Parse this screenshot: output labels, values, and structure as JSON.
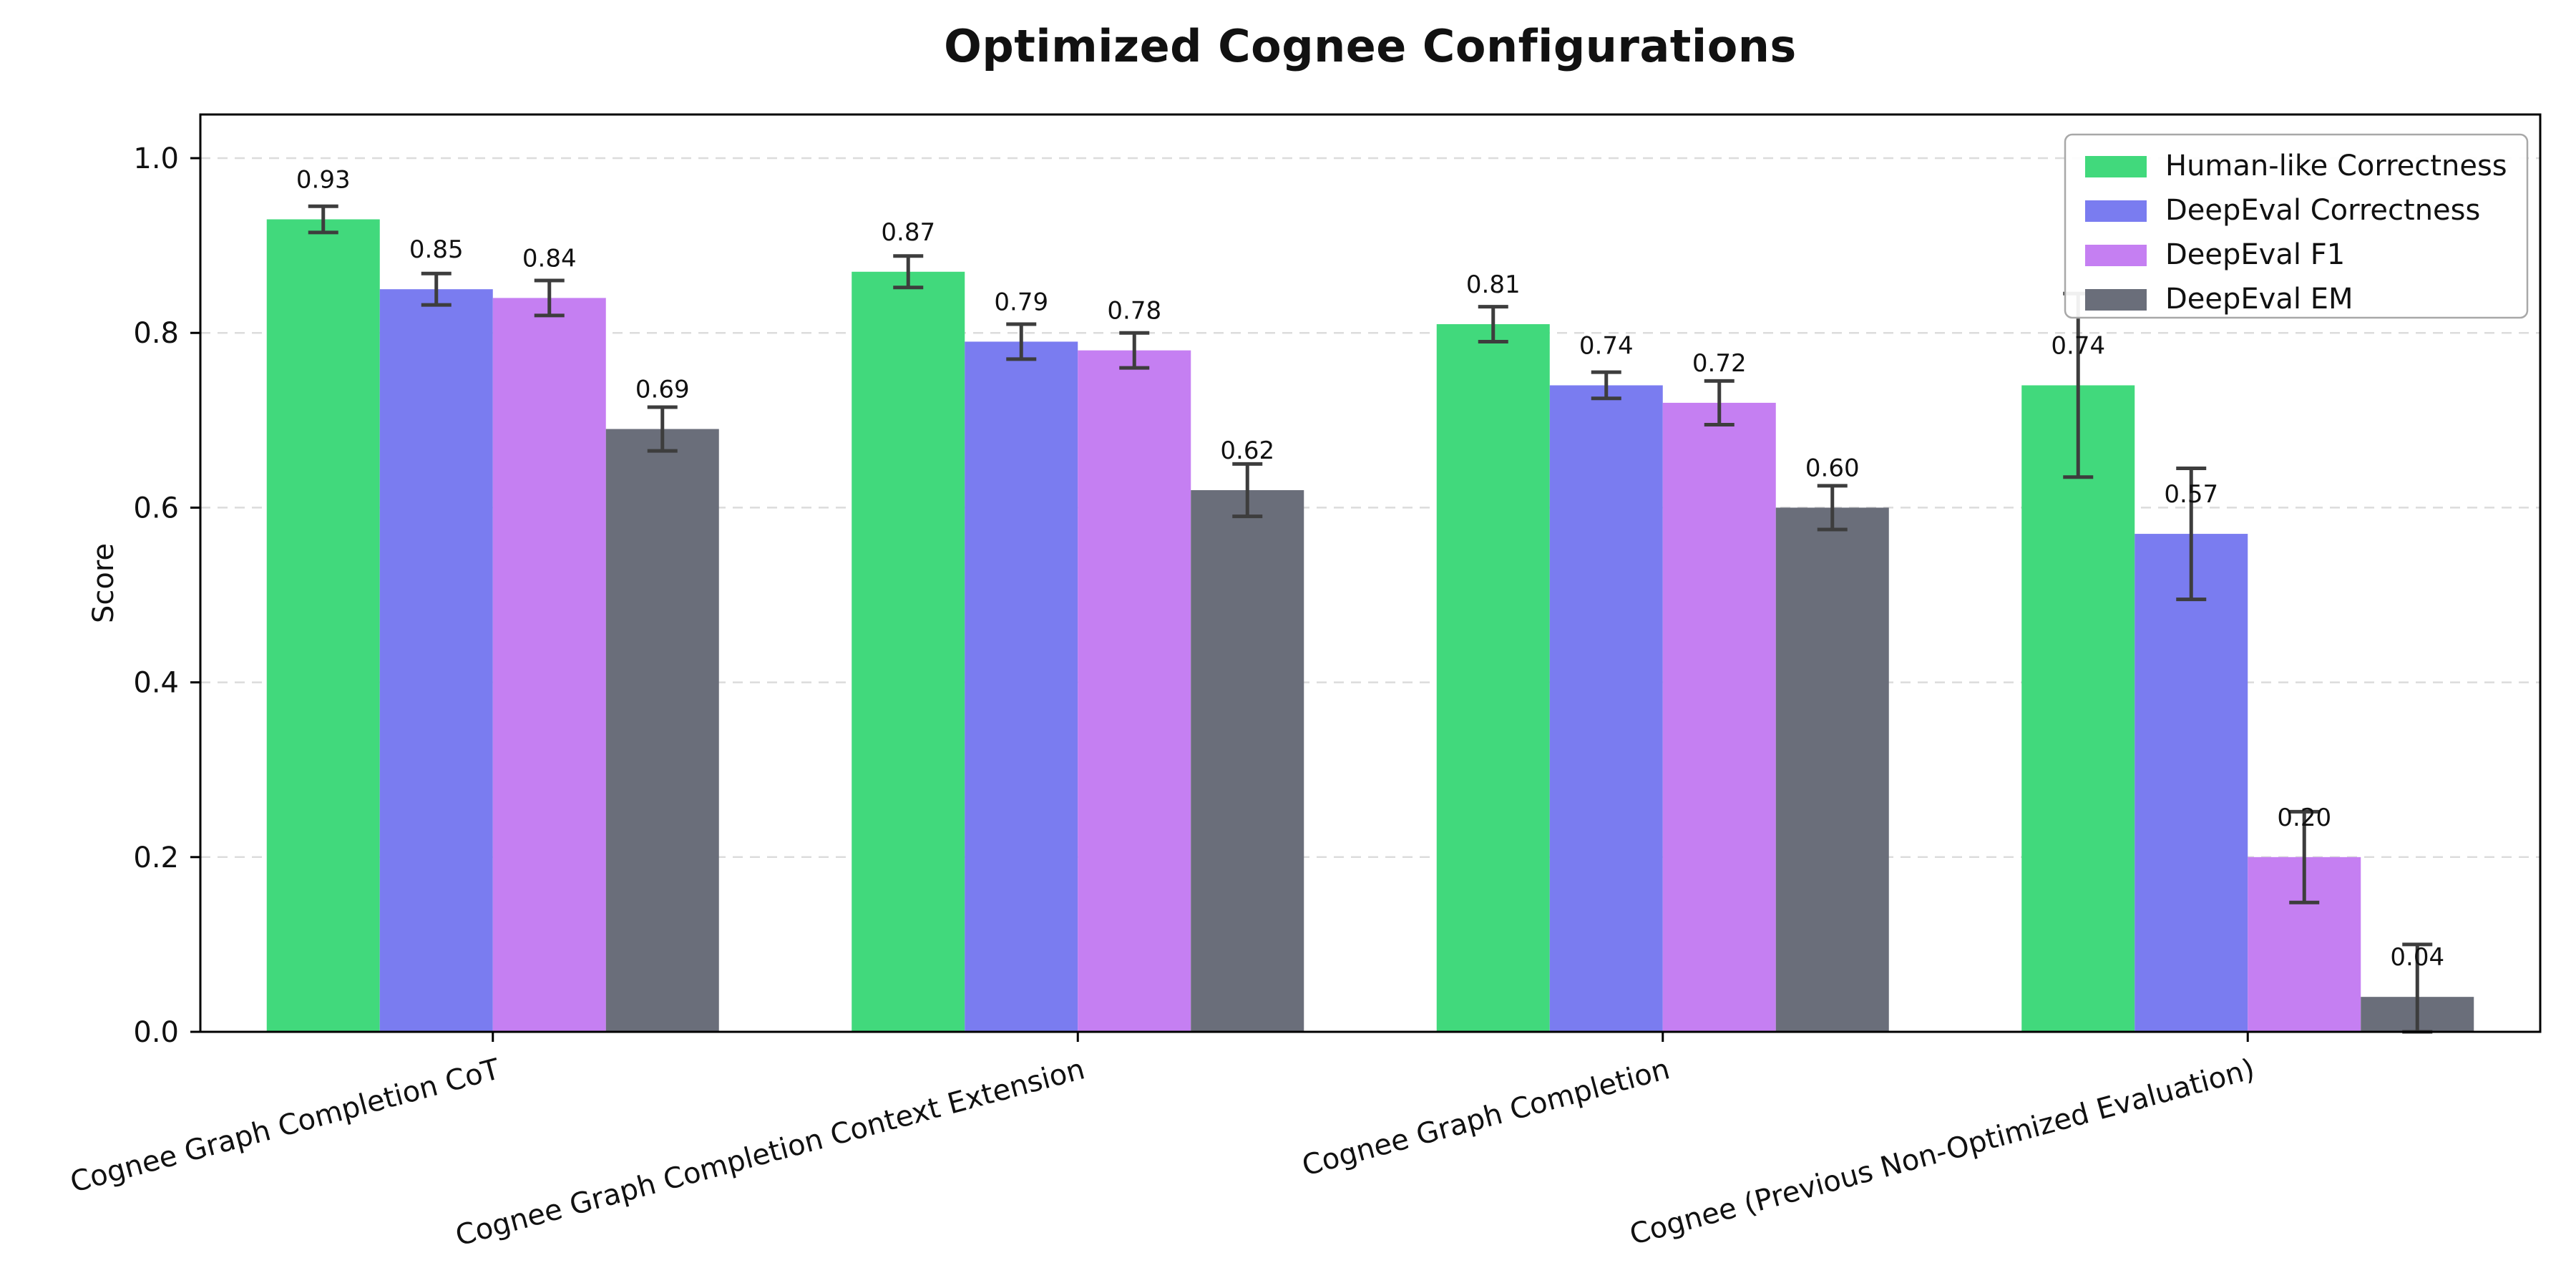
{
  "page": {
    "background": "#ffffff"
  },
  "chart_data": {
    "type": "bar",
    "title": "Optimized Cognee Configurations",
    "xlabel": "",
    "ylabel": "Score",
    "ylim": [
      0,
      1.05
    ],
    "yticks": [
      0.0,
      0.2,
      0.4,
      0.6,
      0.8,
      1.0
    ],
    "grid": {
      "axis": "y",
      "style": "dashed",
      "color": "#dcdcdc"
    },
    "legend_position": "upper-right",
    "error_bar_color": "#3d3d3d",
    "axis_color": "#000000",
    "categories": [
      "Cognee Graph Completion CoT",
      "Cognee Graph Completion Context Extension",
      "Cognee Graph Completion",
      "Cognee (Previous Non-Optimized Evaluation)"
    ],
    "series": [
      {
        "name": "Human-like Correctness",
        "color": "#41d97c",
        "values": [
          0.93,
          0.87,
          0.81,
          0.74
        ],
        "errors": [
          0.015,
          0.018,
          0.02,
          0.105
        ]
      },
      {
        "name": "DeepEval Correctness",
        "color": "#7a7cf0",
        "values": [
          0.85,
          0.79,
          0.74,
          0.57
        ],
        "errors": [
          0.018,
          0.02,
          0.015,
          0.075
        ]
      },
      {
        "name": "DeepEval F1",
        "color": "#c57ff2",
        "values": [
          0.84,
          0.78,
          0.72,
          0.2
        ],
        "errors": [
          0.02,
          0.02,
          0.025,
          0.052
        ]
      },
      {
        "name": "DeepEval EM",
        "color": "#6a6e7a",
        "values": [
          0.69,
          0.62,
          0.6,
          0.04
        ],
        "errors": [
          0.025,
          0.03,
          0.025,
          0.06
        ]
      }
    ]
  }
}
